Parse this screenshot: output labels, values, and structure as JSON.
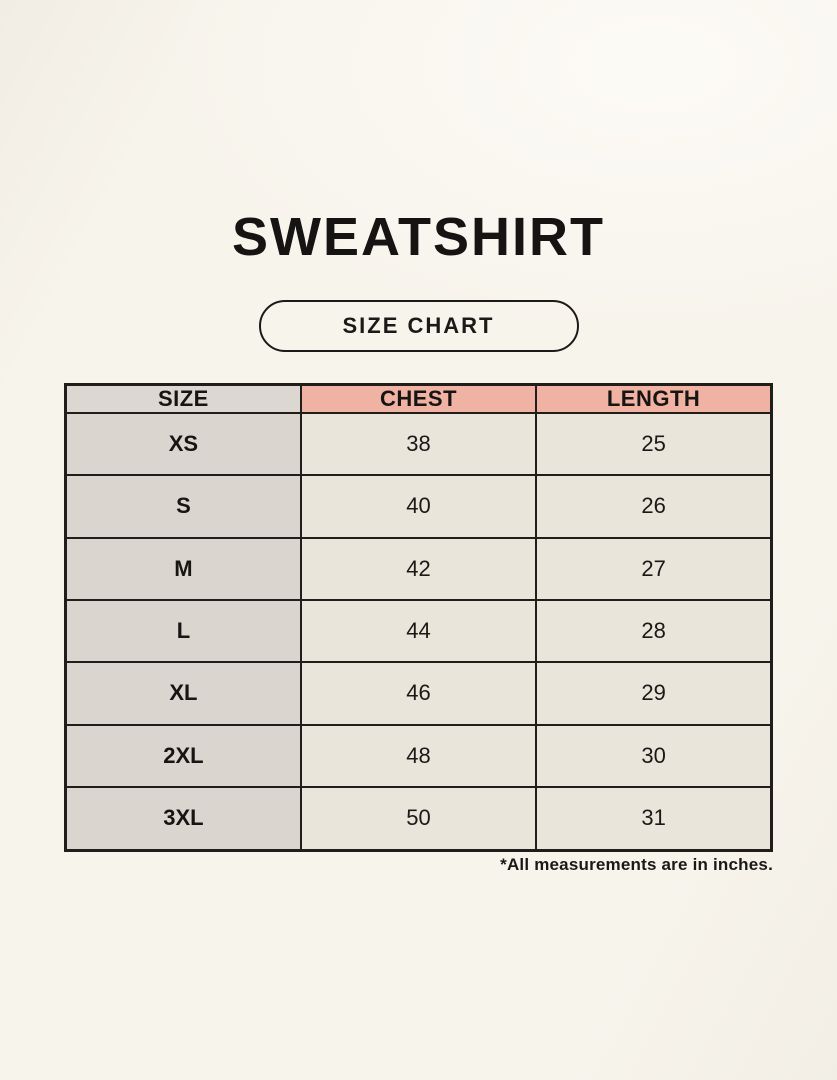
{
  "header": {
    "title": "SWEATSHIRT"
  },
  "badge": {
    "label": "SIZE CHART"
  },
  "footnote": {
    "text": "*All measurements are in inches."
  },
  "colors": {
    "page_background": "#f7f4ec",
    "header_size_bg": "#dcd7d1",
    "header_accent_bg": "#f0b2a3",
    "size_column_bg": "#dbd5cf",
    "value_cell_bg": "#eae5da",
    "table_border": "#211d1a",
    "text": "#171513"
  },
  "chart_data": {
    "type": "table",
    "title": "SWEATSHIRT",
    "subtitle": "SIZE CHART",
    "columns": [
      "SIZE",
      "CHEST",
      "LENGTH"
    ],
    "rows": [
      [
        "XS",
        "38",
        "25"
      ],
      [
        "S",
        "40",
        "26"
      ],
      [
        "M",
        "42",
        "27"
      ],
      [
        "L",
        "44",
        "28"
      ],
      [
        "XL",
        "46",
        "29"
      ],
      [
        "2XL",
        "48",
        "30"
      ],
      [
        "3XL",
        "50",
        "31"
      ]
    ],
    "units": "inches",
    "note": "*All measurements are in inches."
  }
}
